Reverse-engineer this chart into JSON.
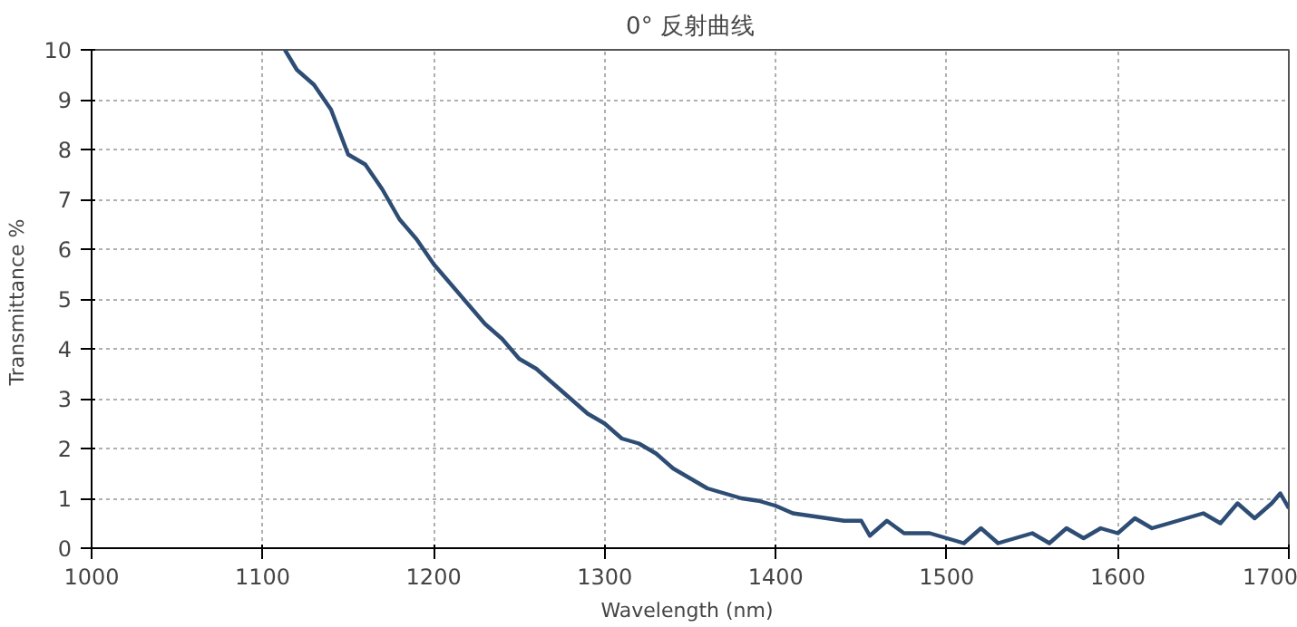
{
  "chart_data": {
    "type": "line",
    "title": "0° 反射曲线",
    "xlabel": "Wavelength  (nm)",
    "ylabel": "Transmittance  %",
    "x": [
      1113,
      1120,
      1130,
      1140,
      1150,
      1160,
      1170,
      1180,
      1190,
      1200,
      1210,
      1220,
      1230,
      1240,
      1250,
      1260,
      1270,
      1280,
      1290,
      1300,
      1310,
      1320,
      1330,
      1340,
      1350,
      1360,
      1370,
      1380,
      1390,
      1400,
      1410,
      1420,
      1430,
      1440,
      1450,
      1455,
      1465,
      1475,
      1490,
      1500,
      1510,
      1520,
      1530,
      1540,
      1550,
      1560,
      1570,
      1580,
      1590,
      1600,
      1610,
      1620,
      1630,
      1640,
      1650,
      1660,
      1670,
      1680,
      1690,
      1695,
      1700
    ],
    "series": [
      {
        "color": "#2e4d74",
        "values": [
          10,
          9.6,
          9.3,
          8.8,
          7.9,
          7.7,
          7.2,
          6.6,
          6.2,
          5.7,
          5.3,
          4.9,
          4.5,
          4.2,
          3.8,
          3.6,
          3.3,
          3.0,
          2.7,
          2.5,
          2.2,
          2.1,
          1.9,
          1.6,
          1.4,
          1.2,
          1.1,
          1.0,
          0.95,
          0.85,
          0.7,
          0.65,
          0.6,
          0.55,
          0.55,
          0.25,
          0.55,
          0.3,
          0.3,
          0.2,
          0.1,
          0.4,
          0.1,
          0.2,
          0.3,
          0.1,
          0.4,
          0.2,
          0.4,
          0.3,
          0.6,
          0.4,
          0.5,
          0.6,
          0.7,
          0.5,
          0.9,
          0.6,
          0.9,
          1.1,
          0.8
        ]
      }
    ],
    "xlim": [
      1000,
      1700
    ],
    "ylim": [
      0,
      10
    ],
    "xticks": [
      1000,
      1100,
      1200,
      1300,
      1400,
      1500,
      1600,
      1700
    ],
    "yticks": [
      0,
      1,
      2,
      3,
      4,
      5,
      6,
      7,
      8,
      9,
      10
    ],
    "grid": true,
    "marker": "none",
    "line_style": "solid"
  }
}
